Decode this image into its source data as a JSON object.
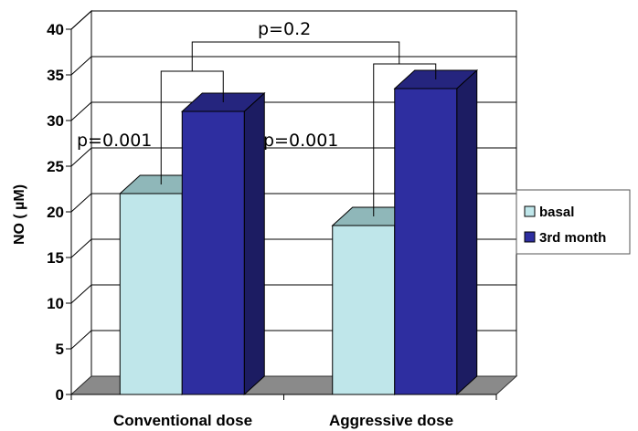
{
  "chart_data": {
    "type": "bar",
    "categories": [
      "Conventional dose",
      "Aggressive dose"
    ],
    "series": [
      {
        "name": "basal",
        "values": [
          22,
          18.5
        ],
        "color": "#bfe6ea"
      },
      {
        "name": "3rd month",
        "values": [
          31,
          33.5
        ],
        "color": "#2e2ea0"
      }
    ],
    "ylabel": "NO ( µM)",
    "ylim": [
      0,
      40
    ],
    "yticks": [
      "0",
      "5",
      "10",
      "15",
      "20",
      "25",
      "30",
      "35",
      "40"
    ],
    "grid": true,
    "legend_position": "right",
    "annotations": [
      {
        "id": "p-conventional",
        "text": "p=0.001"
      },
      {
        "id": "p-aggressive",
        "text": "p=0.001"
      },
      {
        "id": "p-between",
        "text": "p=0.2"
      }
    ]
  }
}
